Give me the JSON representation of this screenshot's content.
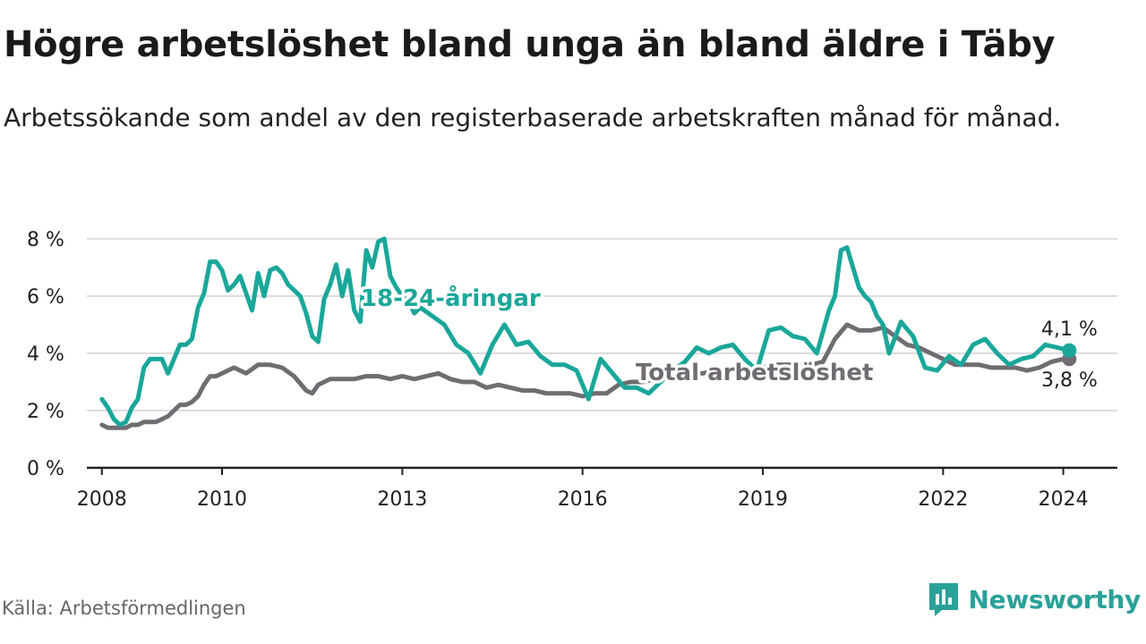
{
  "title": "Högre arbetslöshet bland unga än bland äldre i Täby",
  "subtitle": "Arbetssökande som andel av den registerbaserade arbetskraften månad för månad.",
  "source": "Källa: Arbetsförmedlingen",
  "brand": {
    "name": "Newsworthy",
    "icon": "newsworthy-logo-icon"
  },
  "colors": {
    "youth": "#1aa79a",
    "total": "#706c72",
    "grid": "#dddddd",
    "axis": "#222222"
  },
  "chart_data": {
    "type": "line",
    "title": "Högre arbetslöshet bland unga än bland äldre i Täby",
    "xlabel": "",
    "ylabel": "",
    "ylim": [
      0,
      8
    ],
    "xlim": [
      2007.75,
      2024.9
    ],
    "y_ticks": [
      0,
      2,
      4,
      6,
      8
    ],
    "y_tick_labels": [
      "0 %",
      "2 %",
      "4 %",
      "6 %",
      "8 %"
    ],
    "x_ticks": [
      2008,
      2010,
      2013,
      2016,
      2019,
      2022,
      2024
    ],
    "x_tick_labels": [
      "2008",
      "2010",
      "2013",
      "2016",
      "2019",
      "2022",
      "2024"
    ],
    "grid": true,
    "series": [
      {
        "name": "18-24-åringar",
        "label": "18-24-åringar",
        "end_label": "4,1 %",
        "x": [
          2008.0,
          2008.1,
          2008.2,
          2008.3,
          2008.4,
          2008.5,
          2008.6,
          2008.7,
          2008.8,
          2008.9,
          2009.0,
          2009.1,
          2009.2,
          2009.3,
          2009.4,
          2009.5,
          2009.6,
          2009.7,
          2009.8,
          2009.9,
          2010.0,
          2010.1,
          2010.2,
          2010.3,
          2010.4,
          2010.5,
          2010.6,
          2010.7,
          2010.8,
          2010.9,
          2011.0,
          2011.1,
          2011.2,
          2011.3,
          2011.4,
          2011.5,
          2011.6,
          2011.7,
          2011.8,
          2011.9,
          2012.0,
          2012.1,
          2012.2,
          2012.3,
          2012.4,
          2012.5,
          2012.6,
          2012.7,
          2012.8,
          2012.9,
          2013.0,
          2013.1,
          2013.2,
          2013.3,
          2013.5,
          2013.7,
          2013.9,
          2014.1,
          2014.3,
          2014.5,
          2014.7,
          2014.9,
          2015.1,
          2015.3,
          2015.5,
          2015.7,
          2015.9,
          2016.1,
          2016.3,
          2016.5,
          2016.7,
          2016.9,
          2017.1,
          2017.3,
          2017.5,
          2017.7,
          2017.9,
          2018.1,
          2018.3,
          2018.5,
          2018.7,
          2018.9,
          2019.1,
          2019.3,
          2019.5,
          2019.7,
          2019.9,
          2020.1,
          2020.2,
          2020.3,
          2020.4,
          2020.5,
          2020.6,
          2020.7,
          2020.8,
          2020.9,
          2021.0,
          2021.1,
          2021.3,
          2021.5,
          2021.7,
          2021.9,
          2022.1,
          2022.3,
          2022.5,
          2022.7,
          2022.9,
          2023.1,
          2023.3,
          2023.5,
          2023.7,
          2023.9,
          2024.1
        ],
        "values": [
          2.4,
          2.1,
          1.7,
          1.5,
          1.6,
          2.1,
          2.4,
          3.5,
          3.8,
          3.8,
          3.8,
          3.3,
          3.8,
          4.3,
          4.3,
          4.5,
          5.6,
          6.1,
          7.2,
          7.2,
          6.9,
          6.2,
          6.4,
          6.7,
          6.1,
          5.5,
          6.8,
          6.0,
          6.9,
          7.0,
          6.8,
          6.4,
          6.2,
          6.0,
          5.4,
          4.6,
          4.4,
          5.9,
          6.4,
          7.1,
          6.0,
          6.9,
          5.5,
          5.1,
          7.6,
          7.0,
          7.9,
          8.0,
          6.7,
          6.3,
          6.0,
          5.8,
          5.4,
          5.6,
          5.3,
          5.0,
          4.3,
          4.0,
          3.3,
          4.3,
          5.0,
          4.3,
          4.4,
          3.9,
          3.6,
          3.6,
          3.4,
          2.4,
          3.8,
          3.3,
          2.8,
          2.8,
          2.6,
          3.0,
          3.4,
          3.7,
          4.2,
          4.0,
          4.2,
          4.3,
          3.8,
          3.4,
          4.8,
          4.9,
          4.6,
          4.5,
          4.0,
          5.5,
          6.0,
          7.6,
          7.7,
          7.0,
          6.3,
          6.0,
          5.8,
          5.3,
          5.0,
          4.0,
          5.1,
          4.6,
          3.5,
          3.4,
          3.9,
          3.6,
          4.3,
          4.5,
          4.0,
          3.6,
          3.8,
          3.9,
          4.3,
          4.2,
          4.1
        ]
      },
      {
        "name": "Total arbetslöshet",
        "label": "Total arbetslöshet",
        "end_label": "3,8 %",
        "x": [
          2008.0,
          2008.1,
          2008.2,
          2008.3,
          2008.4,
          2008.5,
          2008.6,
          2008.7,
          2008.8,
          2008.9,
          2009.0,
          2009.1,
          2009.2,
          2009.3,
          2009.4,
          2009.5,
          2009.6,
          2009.7,
          2009.8,
          2009.9,
          2010.0,
          2010.2,
          2010.4,
          2010.6,
          2010.8,
          2011.0,
          2011.2,
          2011.4,
          2011.5,
          2011.6,
          2011.8,
          2012.0,
          2012.2,
          2012.4,
          2012.6,
          2012.8,
          2013.0,
          2013.2,
          2013.4,
          2013.6,
          2013.8,
          2014.0,
          2014.2,
          2014.4,
          2014.6,
          2014.8,
          2015.0,
          2015.2,
          2015.4,
          2015.6,
          2015.8,
          2016.0,
          2016.2,
          2016.4,
          2016.6,
          2016.8,
          2017.0,
          2017.2,
          2017.4,
          2017.6,
          2017.8,
          2018.0,
          2018.2,
          2018.4,
          2018.6,
          2018.8,
          2019.0,
          2019.2,
          2019.4,
          2019.6,
          2019.8,
          2020.0,
          2020.2,
          2020.4,
          2020.6,
          2020.8,
          2021.0,
          2021.2,
          2021.4,
          2021.6,
          2021.8,
          2022.0,
          2022.2,
          2022.4,
          2022.6,
          2022.8,
          2023.0,
          2023.2,
          2023.4,
          2023.6,
          2023.8,
          2024.0,
          2024.1
        ],
        "values": [
          1.5,
          1.4,
          1.4,
          1.4,
          1.4,
          1.5,
          1.5,
          1.6,
          1.6,
          1.6,
          1.7,
          1.8,
          2.0,
          2.2,
          2.2,
          2.3,
          2.5,
          2.9,
          3.2,
          3.2,
          3.3,
          3.5,
          3.3,
          3.6,
          3.6,
          3.5,
          3.2,
          2.7,
          2.6,
          2.9,
          3.1,
          3.1,
          3.1,
          3.2,
          3.2,
          3.1,
          3.2,
          3.1,
          3.2,
          3.3,
          3.1,
          3.0,
          3.0,
          2.8,
          2.9,
          2.8,
          2.7,
          2.7,
          2.6,
          2.6,
          2.6,
          2.5,
          2.6,
          2.6,
          2.9,
          3.0,
          3.0,
          3.1,
          3.2,
          3.2,
          3.3,
          3.3,
          3.4,
          3.5,
          3.5,
          3.5,
          3.5,
          3.6,
          3.6,
          3.6,
          3.6,
          3.7,
          4.5,
          5.0,
          4.8,
          4.8,
          4.9,
          4.6,
          4.3,
          4.2,
          4.0,
          3.8,
          3.6,
          3.6,
          3.6,
          3.5,
          3.5,
          3.5,
          3.4,
          3.5,
          3.7,
          3.8,
          3.8
        ]
      }
    ]
  }
}
